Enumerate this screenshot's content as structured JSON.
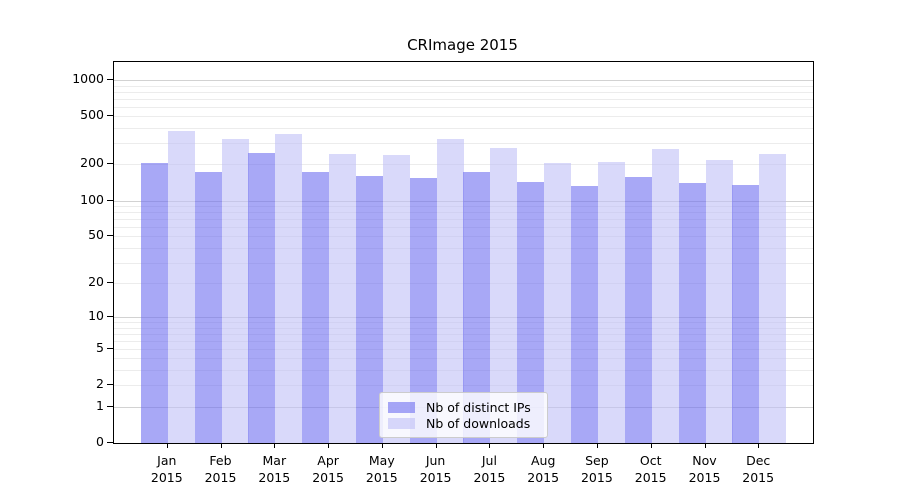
{
  "chart_data": {
    "type": "bar",
    "title": "CRImage 2015",
    "categories": [
      "Jan",
      "Feb",
      "Mar",
      "Apr",
      "May",
      "Jun",
      "Jul",
      "Aug",
      "Sep",
      "Oct",
      "Nov",
      "Dec"
    ],
    "x_sublabel_year": "2015",
    "series": [
      {
        "name": "Nb of distinct IPs",
        "color": "rgba(110,110,240,0.6)",
        "values": [
          205,
          173,
          250,
          172,
          161,
          153,
          172,
          144,
          133,
          156,
          139,
          135
        ]
      },
      {
        "name": "Nb of downloads",
        "color": "rgba(192,192,247,0.6)",
        "values": [
          375,
          328,
          356,
          246,
          239,
          328,
          273,
          204,
          208,
          271,
          217,
          246
        ]
      }
    ],
    "y_axis": {
      "ticks": [
        0,
        1,
        2,
        5,
        10,
        20,
        50,
        100,
        200,
        500,
        1000
      ],
      "scale": "log10(value+1)",
      "ylim": [
        0,
        1400
      ]
    },
    "xlabel": "",
    "ylabel": "",
    "grid": "horizontal, minor lines at 2-9 per decade, major lines at 1/10/100/1000",
    "grid_colors": {
      "minor": "#ececec",
      "major": "#d2d2d2"
    },
    "legend_position": "bottom-center-inside",
    "bar_orientation": "vertical"
  }
}
